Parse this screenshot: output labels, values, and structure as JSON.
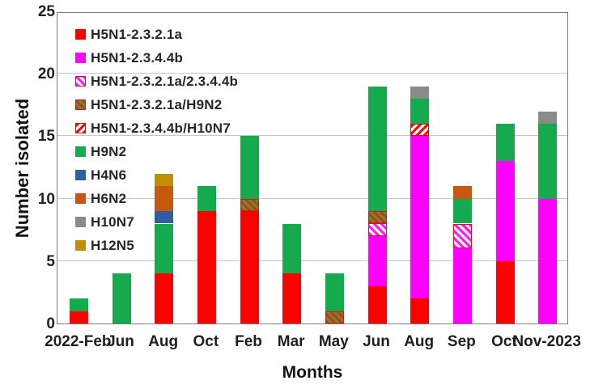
{
  "chart_data": {
    "type": "bar",
    "stacked": true,
    "title": "",
    "xlabel": "Months",
    "ylabel": "Number isolated",
    "ylim": [
      0,
      25
    ],
    "yticks": [
      0,
      5,
      10,
      15,
      20,
      25
    ],
    "grid": true,
    "legend_position": "inside-top-left",
    "categories": [
      "2022-Feb",
      "Jun",
      "Aug",
      "Oct",
      "Feb",
      "Mar",
      "May",
      "Jun",
      "Aug",
      "Sep",
      "Oct",
      "Nov-2023"
    ],
    "series": [
      {
        "name": "H5N1-2.3.2.1a",
        "style": "solid",
        "color": "#fe0000",
        "values": [
          1,
          0,
          4,
          9,
          9,
          4,
          0,
          3,
          2,
          0,
          5,
          0
        ]
      },
      {
        "name": "H5N1-2.3.4.4b",
        "style": "solid",
        "color": "#ff00ff",
        "values": [
          0,
          0,
          0,
          0,
          0,
          0,
          0,
          4,
          13,
          6,
          8,
          10
        ]
      },
      {
        "name": "H5N1-2.3.2.1a/2.3.4.4b",
        "style": "hatch-magenta-white",
        "color": "#ff1aff",
        "values": [
          0,
          0,
          0,
          0,
          0,
          0,
          0,
          1,
          0,
          2,
          0,
          0
        ]
      },
      {
        "name": "H5N1-2.3.2.1a/H9N2",
        "style": "hatch-red-green",
        "color": "#cf3222",
        "values": [
          0,
          0,
          0,
          0,
          1,
          0,
          1,
          1,
          0,
          0,
          0,
          0
        ]
      },
      {
        "name": "H5N1-2.3.4.4b/H10N7",
        "style": "hatch-red-white",
        "color": "#f20d0d",
        "values": [
          0,
          0,
          0,
          0,
          0,
          0,
          0,
          0,
          1,
          0,
          0,
          0
        ]
      },
      {
        "name": "H9N2",
        "style": "solid",
        "color": "#16aa4f",
        "values": [
          1,
          4,
          4,
          2,
          5,
          4,
          3,
          10,
          2,
          2,
          3,
          6
        ]
      },
      {
        "name": "H4N6",
        "style": "solid",
        "color": "#2e5fa3",
        "values": [
          0,
          0,
          1,
          0,
          0,
          0,
          0,
          0,
          0,
          0,
          0,
          0
        ]
      },
      {
        "name": "H6N2",
        "style": "solid",
        "color": "#c5590f",
        "values": [
          0,
          0,
          2,
          0,
          0,
          0,
          0,
          0,
          0,
          1,
          0,
          0
        ]
      },
      {
        "name": "H10N7",
        "style": "solid",
        "color": "#8a8a8a",
        "values": [
          0,
          0,
          0,
          0,
          0,
          0,
          0,
          0,
          1,
          0,
          0,
          1
        ]
      },
      {
        "name": "H12N5",
        "style": "solid",
        "color": "#bf9000",
        "values": [
          0,
          0,
          1,
          0,
          0,
          0,
          0,
          0,
          0,
          0,
          0,
          0
        ]
      }
    ],
    "totals": [
      2,
      4,
      12,
      11,
      15,
      8,
      4,
      19,
      19,
      11,
      16,
      17
    ]
  }
}
